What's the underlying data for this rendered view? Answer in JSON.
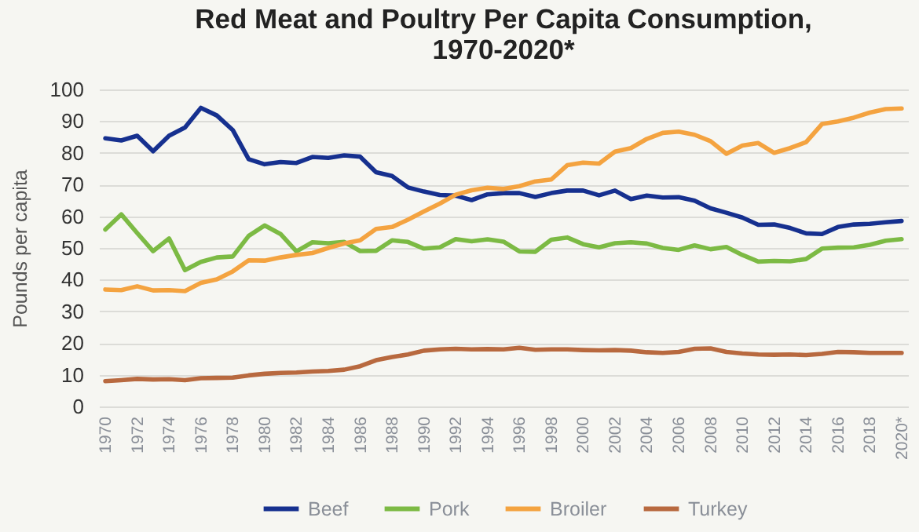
{
  "chart_data": {
    "type": "line",
    "title": "Red Meat and Poultry Per Capita Consumption, 1970-2020*",
    "ylabel": "Pounds per capita",
    "categories": [
      "1970",
      null,
      "1972",
      null,
      "1974",
      null,
      "1976",
      null,
      "1978",
      null,
      "1980",
      null,
      "1982",
      null,
      "1984",
      null,
      "1986",
      null,
      "1988",
      null,
      "1990",
      null,
      "1992",
      null,
      "1994",
      null,
      "1996",
      null,
      "1998",
      null,
      "2000",
      null,
      "2002",
      null,
      "2004",
      null,
      "2006",
      null,
      "2008",
      null,
      "2010",
      null,
      "2012",
      null,
      "2014",
      null,
      "2016",
      null,
      "2018",
      null,
      "2020*"
    ],
    "series": [
      {
        "name": "Beef",
        "color": "#16308f",
        "values": [
          84.6,
          83.9,
          85.4,
          80.5,
          85.4,
          88.0,
          94.2,
          91.8,
          87.2,
          78.0,
          76.4,
          77.1,
          76.8,
          78.7,
          78.4,
          79.2,
          78.8,
          73.9,
          72.7,
          69.1,
          67.8,
          66.7,
          66.5,
          65.1,
          66.9,
          67.3,
          67.3,
          66.1,
          67.3,
          68.1,
          68.1,
          66.6,
          68.1,
          65.4,
          66.5,
          65.9,
          66.0,
          64.9,
          62.5,
          61.1,
          59.6,
          57.3,
          57.4,
          56.3,
          54.6,
          54.4,
          56.6,
          57.4,
          57.6,
          58.1,
          58.5
        ]
      },
      {
        "name": "Pork",
        "color": "#7cba44",
        "values": [
          55.8,
          60.6,
          54.7,
          49.0,
          53.0,
          43.0,
          45.6,
          47.0,
          47.3,
          53.8,
          57.1,
          54.4,
          48.9,
          51.8,
          51.5,
          51.9,
          49.0,
          49.1,
          52.4,
          51.9,
          49.8,
          50.2,
          52.8,
          52.1,
          52.7,
          52.0,
          48.9,
          48.8,
          52.6,
          53.3,
          51.2,
          50.2,
          51.5,
          51.8,
          51.4,
          50.0,
          49.4,
          50.8,
          49.6,
          50.3,
          47.8,
          45.7,
          45.9,
          45.8,
          46.5,
          49.8,
          50.1,
          50.2,
          51.0,
          52.3,
          52.8
        ]
      },
      {
        "name": "Broiler",
        "color": "#f4a340",
        "values": [
          36.9,
          36.7,
          37.9,
          36.6,
          36.7,
          36.4,
          39.0,
          40.1,
          42.6,
          46.1,
          46.0,
          47.0,
          47.8,
          48.4,
          50.0,
          51.4,
          52.4,
          56.0,
          56.6,
          58.9,
          61.5,
          64.0,
          66.8,
          68.2,
          69.0,
          68.6,
          69.5,
          71.0,
          71.6,
          76.1,
          76.9,
          76.6,
          80.4,
          81.5,
          84.4,
          86.3,
          86.7,
          85.7,
          83.7,
          79.7,
          82.3,
          83.1,
          80.0,
          81.5,
          83.4,
          89.1,
          89.9,
          91.1,
          92.7,
          93.8,
          94.0
        ]
      },
      {
        "name": "Turkey",
        "color": "#b8693f",
        "values": [
          8.0,
          8.3,
          8.7,
          8.5,
          8.6,
          8.3,
          8.9,
          9.0,
          9.1,
          9.8,
          10.3,
          10.6,
          10.7,
          11.0,
          11.2,
          11.6,
          12.7,
          14.6,
          15.6,
          16.4,
          17.6,
          18.0,
          18.2,
          18.0,
          18.1,
          18.0,
          18.5,
          17.9,
          18.0,
          18.0,
          17.8,
          17.7,
          17.8,
          17.6,
          17.1,
          16.9,
          17.2,
          18.2,
          18.3,
          17.2,
          16.7,
          16.4,
          16.3,
          16.4,
          16.2,
          16.6,
          17.2,
          17.1,
          16.9,
          16.9,
          16.9
        ]
      }
    ],
    "ylim": [
      0,
      100
    ],
    "yticks": [
      0,
      10,
      20,
      30,
      40,
      50,
      60,
      70,
      80,
      90,
      100
    ],
    "grid": "y",
    "legend": "bottom"
  }
}
